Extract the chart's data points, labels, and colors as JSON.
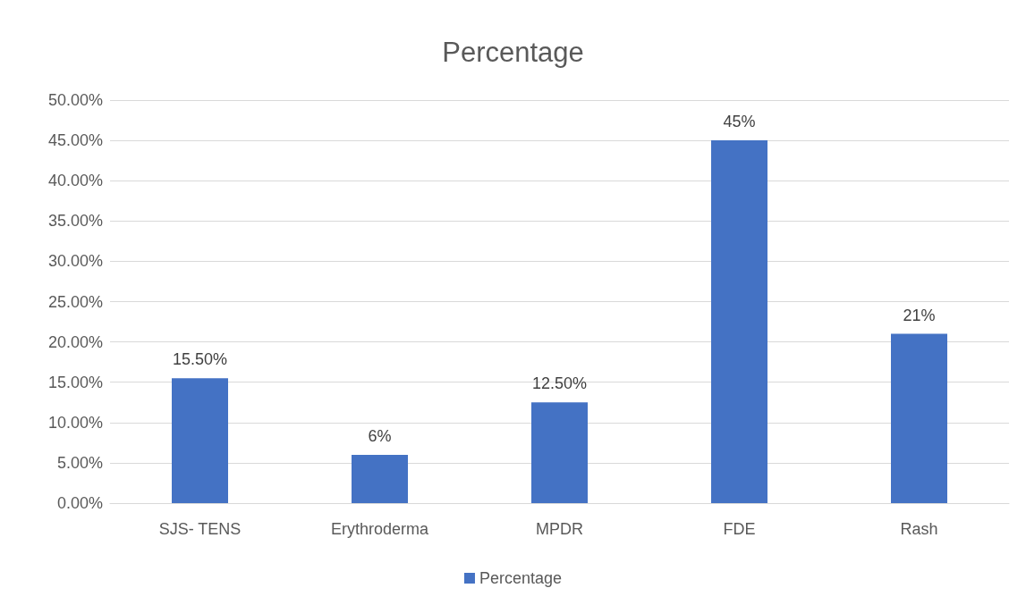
{
  "chart_data": {
    "type": "bar",
    "title": "Percentage",
    "categories": [
      "SJS- TENS",
      "Erythroderma",
      "MPDR",
      "FDE",
      "Rash"
    ],
    "series": [
      {
        "name": "Percentage",
        "color": "#4472c4",
        "values": [
          15.5,
          6,
          12.5,
          45,
          21
        ],
        "value_labels": [
          "15.50%",
          "6%",
          "12.50%",
          "45%",
          "21%"
        ]
      }
    ],
    "ylim": [
      0,
      50
    ],
    "yticks": [
      {
        "value": 0,
        "label": "0.00%"
      },
      {
        "value": 5,
        "label": "5.00%"
      },
      {
        "value": 10,
        "label": "10.00%"
      },
      {
        "value": 15,
        "label": "15.00%"
      },
      {
        "value": 20,
        "label": "20.00%"
      },
      {
        "value": 25,
        "label": "25.00%"
      },
      {
        "value": 30,
        "label": "30.00%"
      },
      {
        "value": 35,
        "label": "35.00%"
      },
      {
        "value": 40,
        "label": "40.00%"
      },
      {
        "value": 45,
        "label": "45.00%"
      },
      {
        "value": 50,
        "label": "50.00%"
      }
    ],
    "grid": "y",
    "legend": "bottom"
  }
}
